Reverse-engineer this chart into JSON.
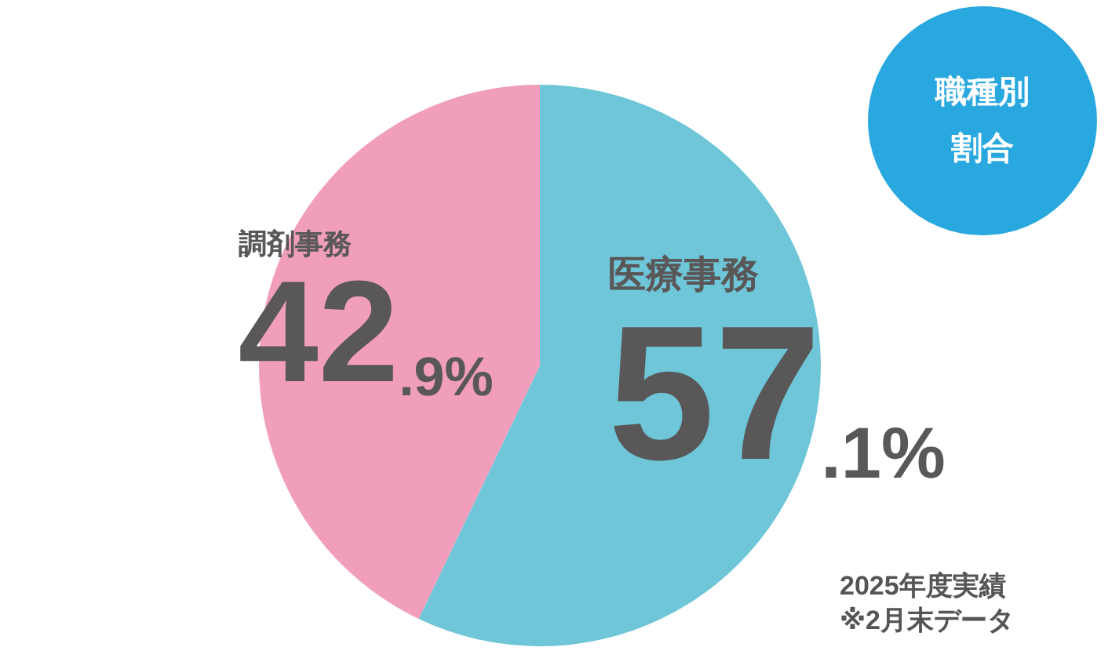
{
  "chart_data": {
    "type": "pie",
    "title": "職種別割合",
    "categories": [
      "医療事務",
      "調剤事務"
    ],
    "values": [
      57.1,
      42.9
    ],
    "colors": [
      "#6ec6d8",
      "#f19ebd"
    ],
    "value_labels": [
      "57.1%",
      "42.9%"
    ],
    "annotations": [
      "2025年度実績",
      "※2月末データ"
    ],
    "legend": false
  }
}
